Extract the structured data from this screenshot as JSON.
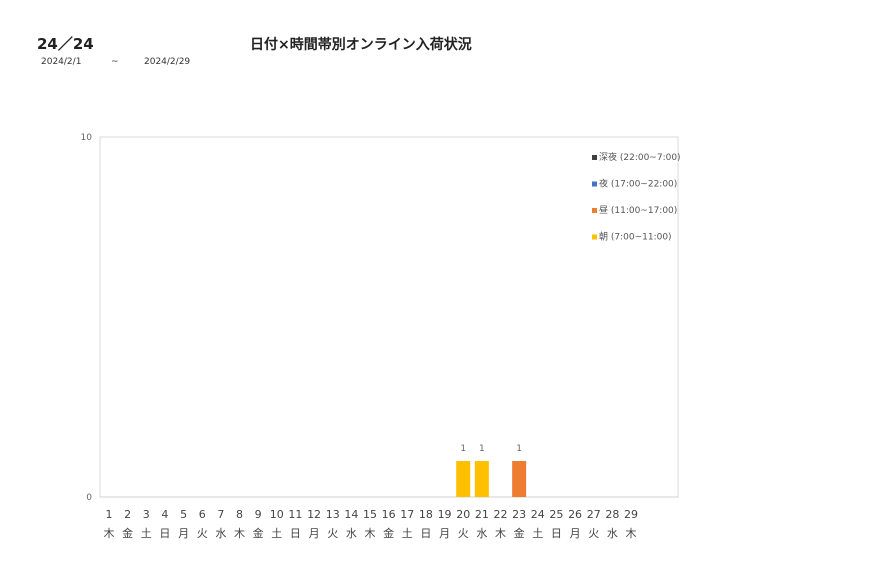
{
  "header": {
    "code": "24／24",
    "title": "日付×時間帯別オンライン入荷状況",
    "date_from": "2024/2/1",
    "tilde": "~",
    "date_to": "2024/2/29"
  },
  "chart_data": {
    "type": "bar",
    "stacked": true,
    "ylim": [
      0,
      10
    ],
    "yticks": [
      "0",
      "10"
    ],
    "grid": false,
    "legend": "top-right",
    "categories": [
      "1",
      "2",
      "3",
      "4",
      "5",
      "6",
      "7",
      "8",
      "9",
      "10",
      "11",
      "12",
      "13",
      "14",
      "15",
      "16",
      "17",
      "18",
      "19",
      "20",
      "21",
      "22",
      "23",
      "24",
      "25",
      "26",
      "27",
      "28",
      "29"
    ],
    "weekdays": [
      "木",
      "金",
      "土",
      "日",
      "月",
      "火",
      "水",
      "木",
      "金",
      "土",
      "日",
      "月",
      "火",
      "水",
      "木",
      "金",
      "土",
      "日",
      "月",
      "火",
      "水",
      "木",
      "金",
      "土",
      "日",
      "月",
      "火",
      "水",
      "木"
    ],
    "series": [
      {
        "name": "深夜 (22:00~7:00)",
        "color": "#3f3f46",
        "values": [
          0,
          0,
          0,
          0,
          0,
          0,
          0,
          0,
          0,
          0,
          0,
          0,
          0,
          0,
          0,
          0,
          0,
          0,
          0,
          0,
          0,
          0,
          0,
          0,
          0,
          0,
          0,
          0,
          0
        ]
      },
      {
        "name": "夜 (17:00~22:00)",
        "color": "#4472c4",
        "values": [
          0,
          0,
          0,
          0,
          0,
          0,
          0,
          0,
          0,
          0,
          0,
          0,
          0,
          0,
          0,
          0,
          0,
          0,
          0,
          0,
          0,
          0,
          0,
          0,
          0,
          0,
          0,
          0,
          0
        ]
      },
      {
        "name": "昼 (11:00~17:00)",
        "color": "#ed7d31",
        "values": [
          0,
          0,
          0,
          0,
          0,
          0,
          0,
          0,
          0,
          0,
          0,
          0,
          0,
          0,
          0,
          0,
          0,
          0,
          0,
          0,
          0,
          0,
          1,
          0,
          0,
          0,
          0,
          0,
          0
        ]
      },
      {
        "name": "朝 (7:00~11:00)",
        "color": "#ffc000",
        "values": [
          0,
          0,
          0,
          0,
          0,
          0,
          0,
          0,
          0,
          0,
          0,
          0,
          0,
          0,
          0,
          0,
          0,
          0,
          0,
          1,
          1,
          0,
          0,
          0,
          0,
          0,
          0,
          0,
          0
        ]
      }
    ]
  }
}
